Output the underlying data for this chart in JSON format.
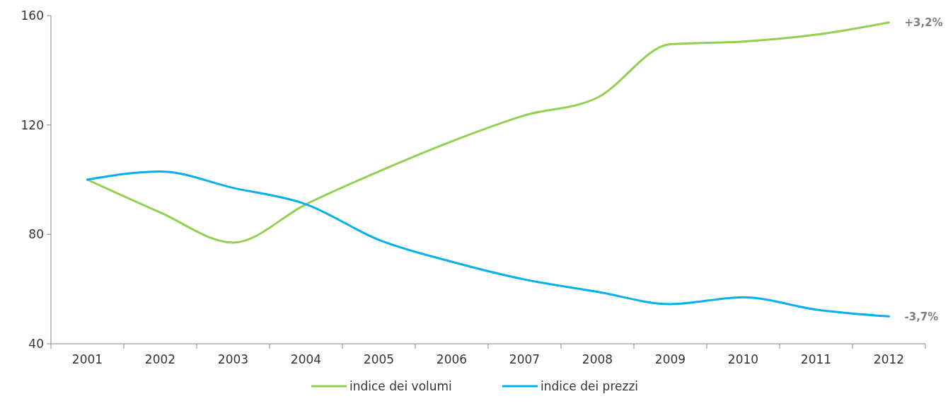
{
  "chart_data": {
    "type": "line",
    "categories": [
      "2001",
      "2002",
      "2003",
      "2004",
      "2005",
      "2006",
      "2007",
      "2008",
      "2009",
      "2010",
      "2011",
      "2012"
    ],
    "series": [
      {
        "name": "indice dei volumi",
        "color": "#92d050",
        "values": [
          100,
          88,
          77,
          91,
          103,
          114,
          123.5,
          130,
          149.5,
          150.5,
          153,
          157.5
        ]
      },
      {
        "name": "indice dei prezzi",
        "color": "#00b0f0",
        "values": [
          100,
          103,
          97,
          91,
          78,
          70,
          63.5,
          59,
          54.5,
          57,
          52.5,
          50
        ]
      }
    ],
    "ylim": [
      40,
      160
    ],
    "yticks": [
      40,
      80,
      120,
      160
    ],
    "grid": false,
    "legend": "bottom",
    "marker": "none",
    "line_style": "solid",
    "annotations": [
      {
        "text": "+3,2%",
        "x": "2012",
        "y": 157.5
      },
      {
        "text": "-3,7%",
        "x": "2012",
        "y": 50
      }
    ]
  }
}
